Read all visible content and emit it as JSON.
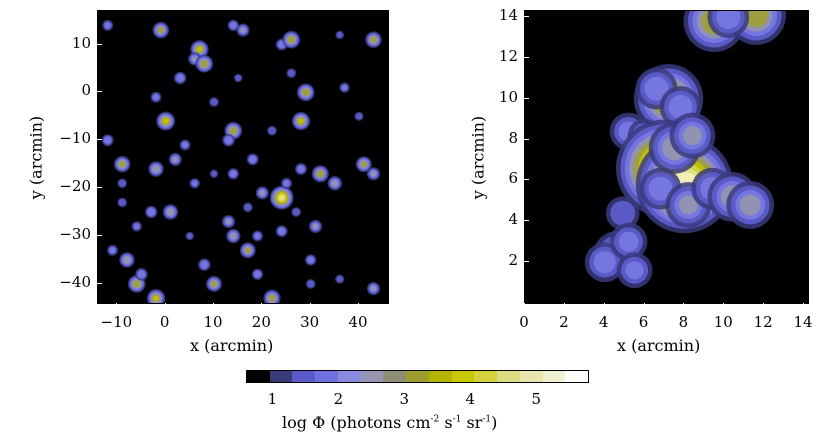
{
  "chart_data": [
    {
      "type": "heatmap",
      "name": "left-map",
      "xlabel": "x (arcmin)",
      "ylabel": "y (arcmin)",
      "xlim": [
        -14,
        46
      ],
      "ylim": [
        -44,
        17
      ],
      "xticks": [
        "−10",
        "0",
        "10",
        "20",
        "30",
        "40"
      ],
      "xtick_values": [
        -10,
        0,
        10,
        20,
        30,
        40
      ],
      "yticks": [
        "10",
        "0",
        "−10",
        "−20",
        "−30",
        "−40"
      ],
      "ytick_values": [
        10,
        0,
        -10,
        -20,
        -30,
        -40
      ],
      "sources": [
        {
          "x": -12,
          "y": 14,
          "v": 2.2
        },
        {
          "x": -1,
          "y": 13,
          "v": 3.2
        },
        {
          "x": 7,
          "y": 9,
          "v": 3.5
        },
        {
          "x": 6,
          "y": 7,
          "v": 2.6
        },
        {
          "x": 8,
          "y": 6,
          "v": 3.4
        },
        {
          "x": 14,
          "y": 14,
          "v": 2.3
        },
        {
          "x": 16,
          "y": 13,
          "v": 2.6
        },
        {
          "x": 24,
          "y": 10,
          "v": 2.4
        },
        {
          "x": 26,
          "y": 11,
          "v": 3.4
        },
        {
          "x": 43,
          "y": 11,
          "v": 3.2
        },
        {
          "x": 36,
          "y": 12,
          "v": 1.8
        },
        {
          "x": 3,
          "y": 3,
          "v": 2.5
        },
        {
          "x": -2,
          "y": -1,
          "v": 2.2
        },
        {
          "x": 10,
          "y": -2,
          "v": 2.0
        },
        {
          "x": 15,
          "y": 3,
          "v": 1.8
        },
        {
          "x": 29,
          "y": 0,
          "v": 3.4
        },
        {
          "x": 26,
          "y": 4,
          "v": 2.0
        },
        {
          "x": 37,
          "y": 1,
          "v": 2.1
        },
        {
          "x": 0,
          "y": -6,
          "v": 3.6
        },
        {
          "x": 14,
          "y": -8,
          "v": 3.4
        },
        {
          "x": 13,
          "y": -10,
          "v": 2.5
        },
        {
          "x": 28,
          "y": -6,
          "v": 3.5
        },
        {
          "x": 22,
          "y": -8,
          "v": 2.0
        },
        {
          "x": -12,
          "y": -10,
          "v": 2.4
        },
        {
          "x": -9,
          "y": -15,
          "v": 3.2
        },
        {
          "x": -2,
          "y": -16,
          "v": 3.0
        },
        {
          "x": 2,
          "y": -14,
          "v": 2.6
        },
        {
          "x": 4,
          "y": -11,
          "v": 2.2
        },
        {
          "x": 10,
          "y": -17,
          "v": 1.8
        },
        {
          "x": 18,
          "y": -14,
          "v": 2.4
        },
        {
          "x": -9,
          "y": -19,
          "v": 2.0
        },
        {
          "x": 6,
          "y": -19,
          "v": 2.1
        },
        {
          "x": 14,
          "y": -17,
          "v": 2.3
        },
        {
          "x": 32,
          "y": -17,
          "v": 3.3
        },
        {
          "x": 35,
          "y": -19,
          "v": 2.8
        },
        {
          "x": 41,
          "y": -15,
          "v": 3.1
        },
        {
          "x": 43,
          "y": -17,
          "v": 2.6
        },
        {
          "x": 24,
          "y": -22,
          "v": 4.5
        },
        {
          "x": 20,
          "y": -21,
          "v": 2.6
        },
        {
          "x": 25,
          "y": -19,
          "v": 2.2
        },
        {
          "x": 28,
          "y": -16,
          "v": 2.4
        },
        {
          "x": -3,
          "y": -25,
          "v": 2.5
        },
        {
          "x": 1,
          "y": -25,
          "v": 3.0
        },
        {
          "x": -9,
          "y": -23,
          "v": 2.0
        },
        {
          "x": 13,
          "y": -27,
          "v": 2.6
        },
        {
          "x": 17,
          "y": -24,
          "v": 2.0
        },
        {
          "x": 24,
          "y": -29,
          "v": 2.4
        },
        {
          "x": 14,
          "y": -30,
          "v": 2.8
        },
        {
          "x": 27,
          "y": -25,
          "v": 2.0
        },
        {
          "x": -11,
          "y": -33,
          "v": 2.2
        },
        {
          "x": 8,
          "y": -36,
          "v": 2.5
        },
        {
          "x": 17,
          "y": -33,
          "v": 3.1
        },
        {
          "x": 19,
          "y": -30,
          "v": 2.2
        },
        {
          "x": 31,
          "y": -28,
          "v": 2.6
        },
        {
          "x": 30,
          "y": -35,
          "v": 2.3
        },
        {
          "x": -8,
          "y": -35,
          "v": 3.0
        },
        {
          "x": -6,
          "y": -40,
          "v": 3.4
        },
        {
          "x": -5,
          "y": -38,
          "v": 2.5
        },
        {
          "x": 10,
          "y": -40,
          "v": 3.1
        },
        {
          "x": 19,
          "y": -38,
          "v": 2.3
        },
        {
          "x": 30,
          "y": -40,
          "v": 2.0
        },
        {
          "x": 36,
          "y": -39,
          "v": 1.9
        },
        {
          "x": -2,
          "y": -43,
          "v": 3.5
        },
        {
          "x": 22,
          "y": -43,
          "v": 3.3
        },
        {
          "x": 43,
          "y": -41,
          "v": 2.6
        },
        {
          "x": 5,
          "y": -30,
          "v": 1.8
        },
        {
          "x": -6,
          "y": -28,
          "v": 2.1
        },
        {
          "x": 40,
          "y": -5,
          "v": 1.9
        }
      ]
    },
    {
      "type": "heatmap",
      "name": "right-map",
      "xlabel": "x (arcmin)",
      "ylabel": "y (arcmin)",
      "xlim": [
        0,
        14.2
      ],
      "ylim": [
        0,
        14.3
      ],
      "xticks": [
        "0",
        "2",
        "4",
        "6",
        "8",
        "10",
        "12",
        "14"
      ],
      "xtick_values": [
        0,
        2,
        4,
        6,
        8,
        10,
        12,
        14
      ],
      "yticks": [
        "14",
        "12",
        "10",
        "8",
        "6",
        "4",
        "2"
      ],
      "ytick_values": [
        14,
        12,
        10,
        8,
        6,
        4,
        2
      ],
      "sources": [
        {
          "x": 7.2,
          "y": 10.0,
          "v": 3.8
        },
        {
          "x": 6.6,
          "y": 10.5,
          "v": 2.4
        },
        {
          "x": 7.8,
          "y": 9.6,
          "v": 2.4
        },
        {
          "x": 5.2,
          "y": 8.4,
          "v": 2.2
        },
        {
          "x": 6.0,
          "y": 8.2,
          "v": 2.0
        },
        {
          "x": 7.0,
          "y": 6.6,
          "v": 5.2
        },
        {
          "x": 8.0,
          "y": 5.8,
          "v": 5.2
        },
        {
          "x": 7.5,
          "y": 7.6,
          "v": 2.9
        },
        {
          "x": 8.4,
          "y": 8.2,
          "v": 2.6
        },
        {
          "x": 6.8,
          "y": 5.6,
          "v": 2.4
        },
        {
          "x": 8.2,
          "y": 4.8,
          "v": 2.6
        },
        {
          "x": 9.4,
          "y": 5.6,
          "v": 2.4
        },
        {
          "x": 10.4,
          "y": 5.2,
          "v": 2.8
        },
        {
          "x": 11.3,
          "y": 4.8,
          "v": 2.7
        },
        {
          "x": 4.9,
          "y": 4.4,
          "v": 2.0
        },
        {
          "x": 4.6,
          "y": 2.4,
          "v": 2.6
        },
        {
          "x": 4.0,
          "y": 2.0,
          "v": 2.3
        },
        {
          "x": 5.2,
          "y": 3.0,
          "v": 2.2
        },
        {
          "x": 5.5,
          "y": 1.6,
          "v": 2.1
        },
        {
          "x": 9.5,
          "y": 13.8,
          "v": 3.4
        },
        {
          "x": 11.6,
          "y": 14.1,
          "v": 3.3
        },
        {
          "x": 10.2,
          "y": 14.0,
          "v": 2.4
        }
      ]
    }
  ],
  "colorbar": {
    "ticks": [
      "1",
      "2",
      "3",
      "4",
      "5"
    ],
    "tick_values": [
      1,
      2,
      3,
      4,
      5
    ],
    "range": [
      0.6,
      5.8
    ],
    "label_main": "log Φ (photons cm",
    "label_exp1": "-2",
    "label_mid1": " s",
    "label_exp2": "-1",
    "label_mid2": " sr",
    "label_exp3": "-1",
    "label_end": ")",
    "colors": [
      "#000000",
      "#3a3a7a",
      "#5a5ac8",
      "#7070e0",
      "#8a8ae0",
      "#9696b4",
      "#8e8e78",
      "#9e9e30",
      "#b4b400",
      "#c8c800",
      "#d2d23c",
      "#dcdc82",
      "#e6e6aa",
      "#f0f0d2",
      "#ffffff"
    ]
  }
}
